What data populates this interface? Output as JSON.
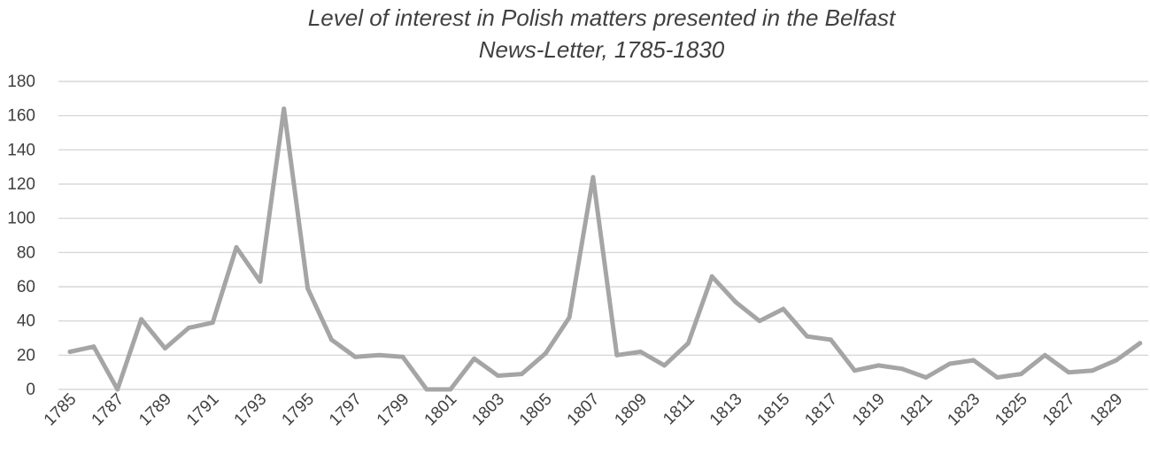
{
  "chart_data": {
    "type": "line",
    "title_lines": [
      "Level of interest in Polish matters presented in the Belfast",
      "News-Letter, 1785-1830"
    ],
    "xlabel": "",
    "ylabel": "",
    "ylim": [
      0,
      180
    ],
    "yticks": [
      "0",
      "20",
      "40",
      "60",
      "80",
      "100",
      "120",
      "140",
      "160",
      "180"
    ],
    "xtick_labels": [
      "1785",
      "1787",
      "1789",
      "1791",
      "1793",
      "1795",
      "1797",
      "1799",
      "1801",
      "1803",
      "1805",
      "1807",
      "1809",
      "1811",
      "1813",
      "1815",
      "1817",
      "1819",
      "1821",
      "1823",
      "1825",
      "1827",
      "1829"
    ],
    "grid": true,
    "legend": "none",
    "color": "#a5a5a5",
    "x": [
      1785,
      1786,
      1787,
      1788,
      1789,
      1790,
      1791,
      1792,
      1793,
      1794,
      1795,
      1796,
      1797,
      1798,
      1799,
      1800,
      1801,
      1802,
      1803,
      1804,
      1805,
      1806,
      1807,
      1808,
      1809,
      1810,
      1811,
      1812,
      1813,
      1814,
      1815,
      1816,
      1817,
      1818,
      1819,
      1820,
      1821,
      1822,
      1823,
      1824,
      1825,
      1826,
      1827,
      1828,
      1829,
      1830
    ],
    "values": [
      22,
      25,
      0,
      41,
      24,
      36,
      39,
      83,
      63,
      164,
      59,
      29,
      19,
      20,
      19,
      0,
      0,
      18,
      8,
      9,
      21,
      42,
      124,
      20,
      22,
      14,
      27,
      66,
      51,
      40,
      47,
      31,
      29,
      11,
      14,
      12,
      7,
      15,
      17,
      7,
      9,
      20,
      10,
      11,
      17,
      27
    ]
  }
}
